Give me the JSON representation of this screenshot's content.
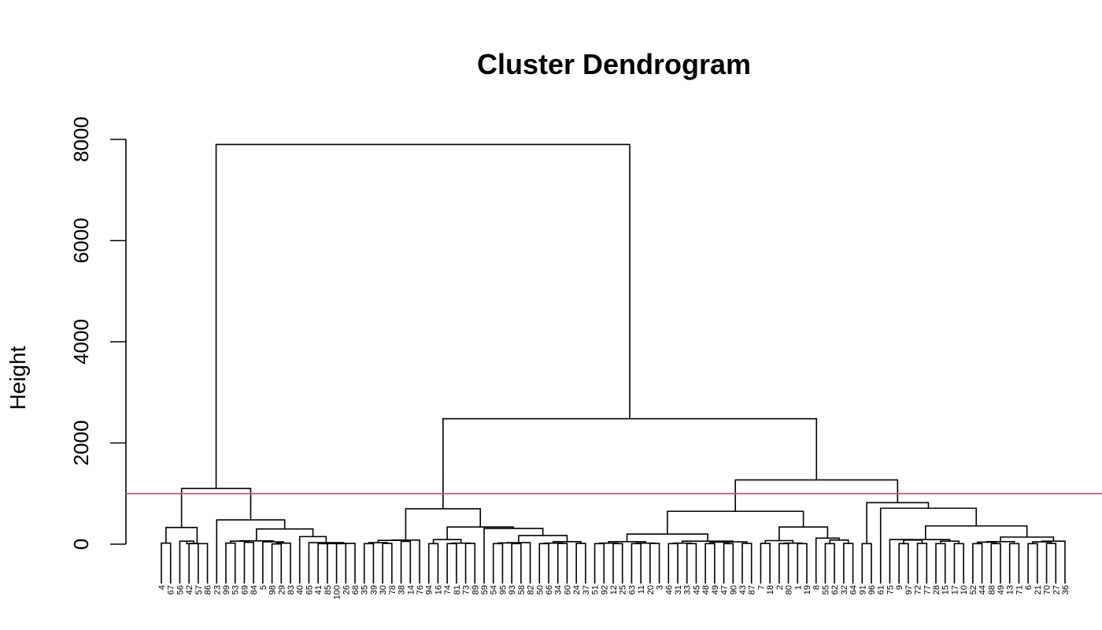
{
  "chart_data": {
    "type": "dendrogram",
    "title": "Cluster Dendrogram",
    "xlabel": "",
    "ylabel": "Height",
    "ylim": [
      0,
      8000
    ],
    "yticks": [
      0,
      2000,
      4000,
      6000,
      8000
    ],
    "ytick_labels": [
      "0",
      "2000",
      "4000",
      "6000",
      "8000"
    ],
    "leaf_order": [
      4,
      67,
      56,
      42,
      57,
      86,
      23,
      99,
      53,
      69,
      84,
      5,
      98,
      29,
      83,
      40,
      65,
      41,
      85,
      100,
      26,
      68,
      35,
      39,
      30,
      78,
      38,
      14,
      76,
      94,
      16,
      74,
      81,
      73,
      89,
      59,
      54,
      95,
      93,
      58,
      82,
      50,
      66,
      34,
      60,
      24,
      37,
      51,
      92,
      12,
      25,
      63,
      11,
      20,
      3,
      46,
      31,
      33,
      45,
      48,
      49,
      47,
      90,
      43,
      87,
      7,
      18,
      2,
      80,
      1,
      19,
      8,
      55,
      62,
      32,
      64,
      91,
      96,
      61,
      75,
      9,
      97,
      72,
      77,
      28,
      15,
      17,
      10,
      52,
      44,
      88,
      49,
      13,
      71,
      6,
      21,
      70,
      27,
      36
    ],
    "merges": [
      {
        "left": "4",
        "right": "67",
        "height": 20
      },
      {
        "left": "42",
        "right": "57",
        "height": 15
      },
      {
        "left": "56",
        "right": "42+57",
        "height": 60
      },
      {
        "left": "56+42+57",
        "right": "86",
        "height": 10
      },
      {
        "left": "4+67",
        "right": "56+42+57+86",
        "height": 330
      },
      {
        "left": "99",
        "right": "53",
        "height": 20
      },
      {
        "left": "69",
        "right": "84",
        "height": 35
      },
      {
        "left": "99+53",
        "right": "69+84",
        "height": 60
      },
      {
        "left": "98",
        "right": "29",
        "height": 5
      },
      {
        "left": "98+29",
        "right": "83",
        "height": 20
      },
      {
        "left": "5",
        "right": "98+29+83",
        "height": 45
      },
      {
        "left": "99+53+69+84",
        "right": "5+98+29+83",
        "height": 65
      },
      {
        "left": "41",
        "right": "85",
        "height": 10
      },
      {
        "left": "100",
        "right": "26",
        "height": 10
      },
      {
        "left": "41+85",
        "right": "100+26",
        "height": 10
      },
      {
        "left": "41+85+100+26",
        "right": "68",
        "height": 15
      },
      {
        "left": "65",
        "right": "41+85+100+26+68",
        "height": 30
      },
      {
        "left": "40",
        "right": "65+41+85+100+26+68",
        "height": 150
      },
      {
        "left": "99+53+69+84+5+98+29+83",
        "right": "40+65+41+85+100+26+68",
        "height": 300
      },
      {
        "left": "23",
        "right": "99+53+69+84+5+98+29+83+40+65+41+85+100+26+68",
        "height": 480
      },
      {
        "left": "4..86",
        "right": "23..68",
        "height": 1100
      },
      {
        "left": "35",
        "right": "39",
        "height": 10
      },
      {
        "left": "30",
        "right": "78",
        "height": 15
      },
      {
        "left": "35+39",
        "right": "30+78",
        "height": 30
      },
      {
        "left": "38",
        "right": "14",
        "height": 55
      },
      {
        "left": "35+39+30+78",
        "right": "38+14",
        "height": 75
      },
      {
        "left": "35..14",
        "right": "76",
        "height": 80
      },
      {
        "left": "94",
        "right": "16",
        "height": 10
      },
      {
        "left": "74",
        "right": "81",
        "height": 10
      },
      {
        "left": "73",
        "right": "89",
        "height": 15
      },
      {
        "left": "74+81",
        "right": "73+89",
        "height": 20
      },
      {
        "left": "94+16",
        "right": "74+81+73+89",
        "height": 90
      },
      {
        "left": "54",
        "right": "95",
        "height": 10
      },
      {
        "left": "93",
        "right": "58",
        "height": 10
      },
      {
        "left": "54+95",
        "right": "93+58",
        "height": 25
      },
      {
        "left": "54+95+93+58",
        "right": "82",
        "height": 30
      },
      {
        "left": "50",
        "right": "66",
        "height": 10
      },
      {
        "left": "34",
        "right": "60",
        "height": 15
      },
      {
        "left": "50+66",
        "right": "34+60",
        "height": 20
      },
      {
        "left": "24",
        "right": "37",
        "height": 15
      },
      {
        "left": "50+66+34+60",
        "right": "24+37",
        "height": 50
      },
      {
        "left": "54..82",
        "right": "50..37",
        "height": 170
      },
      {
        "left": "59",
        "right": "54..37",
        "height": 310
      },
      {
        "left": "94..89",
        "right": "59..37",
        "height": 340
      },
      {
        "left": "35..76",
        "right": "94..37",
        "height": 700
      },
      {
        "left": "51",
        "right": "92",
        "height": 10
      },
      {
        "left": "12",
        "right": "25",
        "height": 10
      },
      {
        "left": "51+92",
        "right": "12+25",
        "height": 20
      },
      {
        "left": "63",
        "right": "11",
        "height": 10
      },
      {
        "left": "20",
        "right": "3",
        "height": 15
      },
      {
        "left": "63+11",
        "right": "20+3",
        "height": 20
      },
      {
        "left": "51..25",
        "right": "63..3",
        "height": 50
      },
      {
        "left": "46",
        "right": "31",
        "height": 10
      },
      {
        "left": "33",
        "right": "45",
        "height": 10
      },
      {
        "left": "46+31",
        "right": "33+45",
        "height": 20
      },
      {
        "left": "48",
        "right": "49",
        "height": 10
      },
      {
        "left": "47",
        "right": "90",
        "height": 10
      },
      {
        "left": "48+49",
        "right": "47+90",
        "height": 40
      },
      {
        "left": "43",
        "right": "87",
        "height": 15
      },
      {
        "left": "48..90",
        "right": "43+87",
        "height": 45
      },
      {
        "left": "46..45",
        "right": "48..87",
        "height": 60
      },
      {
        "left": "51..3",
        "right": "46..87",
        "height": 200
      },
      {
        "left": "7",
        "right": "18",
        "height": 15
      },
      {
        "left": "2",
        "right": "80",
        "height": 10
      },
      {
        "left": "1",
        "right": "19",
        "height": 10
      },
      {
        "left": "2+80",
        "right": "1+19",
        "height": 20
      },
      {
        "left": "7+18",
        "right": "2+80+1+19",
        "height": 70
      },
      {
        "left": "55",
        "right": "62",
        "height": 10
      },
      {
        "left": "32",
        "right": "64",
        "height": 15
      },
      {
        "left": "55+62",
        "right": "32+64",
        "height": 80
      },
      {
        "left": "8",
        "right": "55..64",
        "height": 120
      },
      {
        "left": "7..19",
        "right": "8..64",
        "height": 340
      },
      {
        "left": "51..87",
        "right": "7..64",
        "height": 650
      },
      {
        "left": "91",
        "right": "96",
        "height": 10
      },
      {
        "left": "9",
        "right": "97",
        "height": 10
      },
      {
        "left": "72",
        "right": "77",
        "height": 15
      },
      {
        "left": "9+97",
        "right": "72+77",
        "height": 80
      },
      {
        "left": "75",
        "right": "9..77",
        "height": 90
      },
      {
        "left": "28",
        "right": "15",
        "height": 10
      },
      {
        "left": "17",
        "right": "10",
        "height": 10
      },
      {
        "left": "28+15",
        "right": "17+10",
        "height": 60
      },
      {
        "left": "75..77",
        "right": "28..10",
        "height": 90
      },
      {
        "left": "52",
        "right": "44",
        "height": 10
      },
      {
        "left": "88",
        "right": "49",
        "height": 10
      },
      {
        "left": "52+44",
        "right": "88+49",
        "height": 40
      },
      {
        "left": "13",
        "right": "71",
        "height": 10
      },
      {
        "left": "52..49",
        "right": "13+71",
        "height": 50
      },
      {
        "left": "6",
        "right": "21",
        "height": 10
      },
      {
        "left": "70",
        "right": "27",
        "height": 15
      },
      {
        "left": "6+21",
        "right": "70+27",
        "height": 45
      },
      {
        "left": "6..27",
        "right": "36",
        "height": 60
      },
      {
        "left": "52..71",
        "right": "6..36",
        "height": 140
      },
      {
        "left": "75..10",
        "right": "52..36",
        "height": 360
      },
      {
        "left": "61",
        "right": "75..36",
        "height": 710
      },
      {
        "left": "91+96",
        "right": "61..36",
        "height": 820
      },
      {
        "left": "51..64",
        "right": "91..36",
        "height": 1270
      },
      {
        "left": "35..37",
        "right": "51..36",
        "height": 2480
      },
      {
        "left": "4..68",
        "right": "35..36",
        "height": 7900
      }
    ],
    "cut_height": 1000,
    "colors": {
      "tree": "#000000",
      "cut_line": "#e0457b",
      "background": "#ffffff"
    },
    "grid": false
  }
}
